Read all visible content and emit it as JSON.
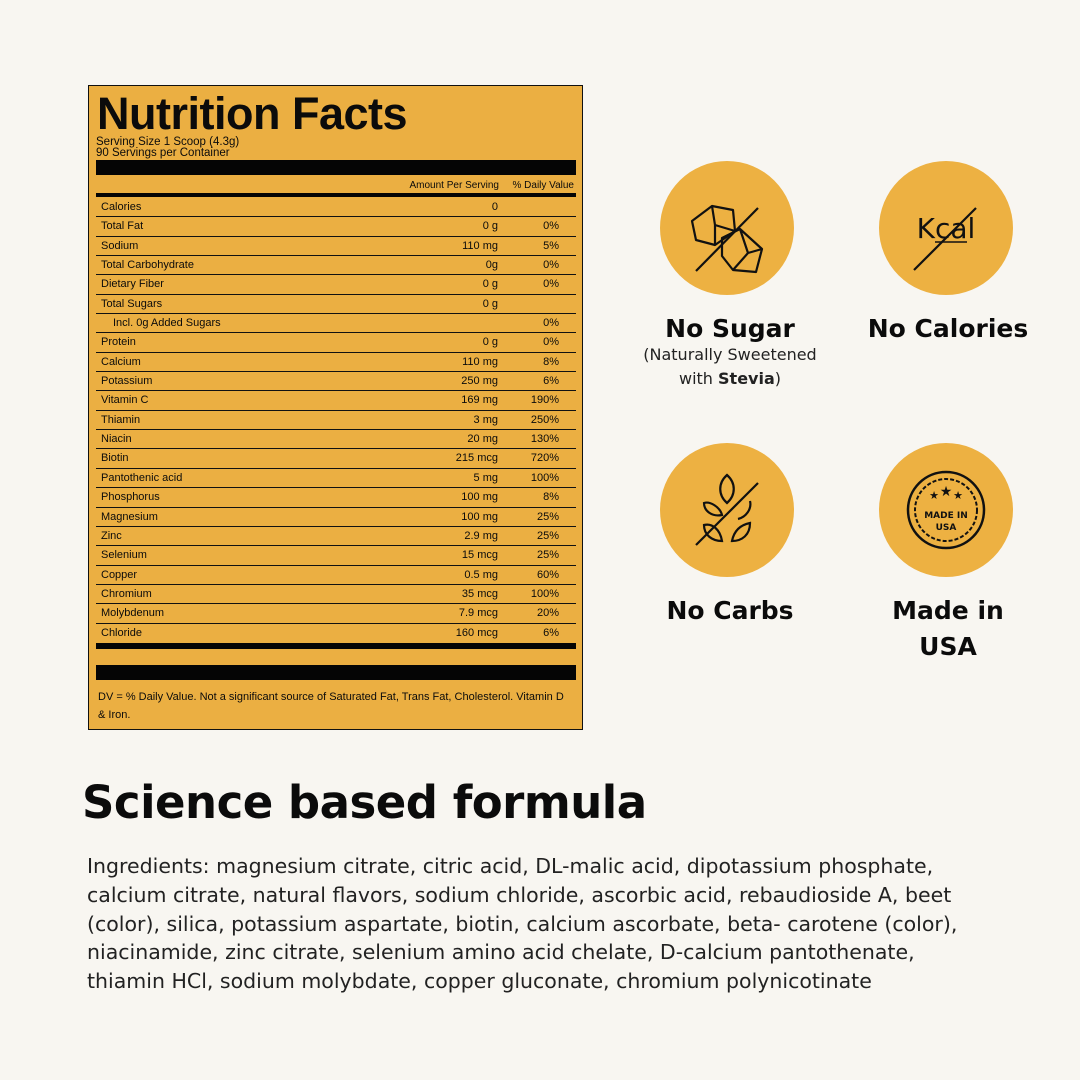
{
  "label": {
    "title": "Nutrition Facts",
    "serving_size": "Serving Size 1 Scoop (4.3g)",
    "servings": "90 Servings per Container",
    "col_amount": "Amount Per Serving",
    "col_dv": "% Daily Value",
    "rows": [
      {
        "name": "Calories",
        "amount": "0",
        "dv": ""
      },
      {
        "name": "Total Fat",
        "amount": "0 g",
        "dv": "0%"
      },
      {
        "name": "Sodium",
        "amount": "110 mg",
        "dv": "5%"
      },
      {
        "name": "Total Carbohydrate",
        "amount": "0g",
        "dv": "0%"
      },
      {
        "name": "Dietary Fiber",
        "amount": "0 g",
        "dv": "0%"
      },
      {
        "name": "Total Sugars",
        "amount": "0 g",
        "dv": ""
      },
      {
        "name": "Incl. 0g Added Sugars",
        "amount": "",
        "dv": "0%",
        "indent": true
      },
      {
        "name": "Protein",
        "amount": "0 g",
        "dv": "0%"
      },
      {
        "name": "Calcium",
        "amount": "110 mg",
        "dv": "8%"
      },
      {
        "name": "Potassium",
        "amount": "250 mg",
        "dv": "6%"
      },
      {
        "name": "Vitamin C",
        "amount": "169 mg",
        "dv": "190%"
      },
      {
        "name": "Thiamin",
        "amount": "3 mg",
        "dv": "250%"
      },
      {
        "name": "Niacin",
        "amount": "20 mg",
        "dv": "130%"
      },
      {
        "name": "Biotin",
        "amount": "215 mcg",
        "dv": "720%"
      },
      {
        "name": "Pantothenic acid",
        "amount": "5 mg",
        "dv": "100%"
      },
      {
        "name": "Phosphorus",
        "amount": "100 mg",
        "dv": "8%"
      },
      {
        "name": "Magnesium",
        "amount": "100 mg",
        "dv": "25%"
      },
      {
        "name": "Zinc",
        "amount": "2.9 mg",
        "dv": "25%"
      },
      {
        "name": "Selenium",
        "amount": "15 mcg",
        "dv": "25%"
      },
      {
        "name": "Copper",
        "amount": "0.5 mg",
        "dv": "60%"
      },
      {
        "name": "Chromium",
        "amount": "35 mcg",
        "dv": "100%"
      },
      {
        "name": "Molybdenum",
        "amount": "7.9 mcg",
        "dv": "20%"
      },
      {
        "name": "Chloride",
        "amount": "160 mcg",
        "dv": "6%"
      }
    ],
    "footnote": "DV = % Daily Value. Not a significant source of Saturated Fat, Trans Fat, Cholesterol. Vitamin D & Iron."
  },
  "badges": {
    "no_sugar": {
      "title": "No Sugar",
      "sub_prefix": "(Naturally Sweetened",
      "sub_with": "with ",
      "sub_bold": "Stevia",
      "sub_suffix": ")",
      "icon": "sugar-cubes-crossed-icon"
    },
    "no_calories": {
      "title": "No Calories",
      "icon_text": "Kcal",
      "icon": "kcal-crossed-icon"
    },
    "no_carbs": {
      "title": "No Carbs",
      "icon": "wheat-crossed-icon"
    },
    "made_in_usa": {
      "title_1": "Made in",
      "title_2": "USA",
      "seal_1": "MADE IN",
      "seal_2": "USA",
      "icon": "made-in-usa-seal-icon"
    }
  },
  "colors": {
    "accent": "#edb142",
    "label_bg": "#ebaf42",
    "background": "#f8f6f1"
  },
  "formula": {
    "heading": "Science based formula",
    "ingredients": "Ingredients: magnesium citrate, citric acid, DL-malic acid, dipotassium phosphate, calcium citrate, natural flavors, sodium chloride, ascorbic acid, rebaudioside A, beet (color), silica, potassium aspartate, biotin, calcium ascorbate, beta- carotene (color), niacinamide, zinc citrate, selenium amino acid chelate, D-calcium pantothenate, thiamin HCl, sodium molybdate, copper gluconate, chromium polynicotinate"
  }
}
